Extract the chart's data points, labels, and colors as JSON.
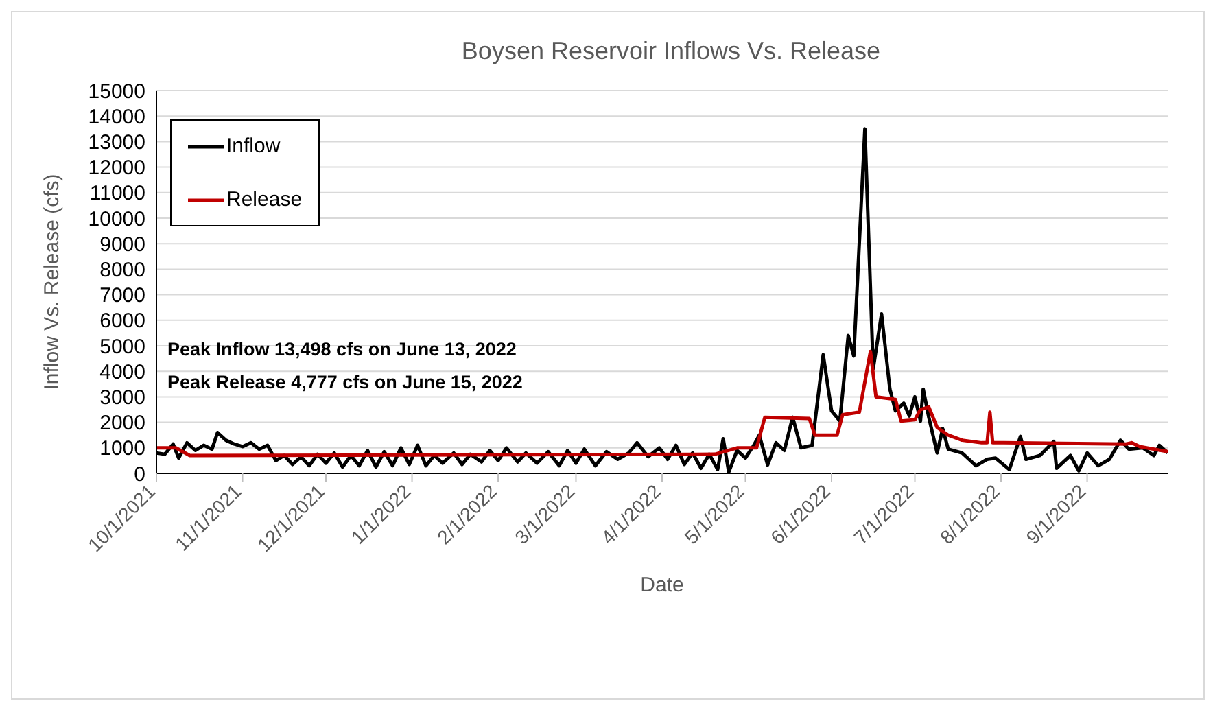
{
  "chart_data": {
    "type": "line",
    "title": "Boysen Reservoir Inflows Vs. Release",
    "xlabel": "Date",
    "ylabel": "Inflow Vs. Release (cfs)",
    "annotations": [
      "Peak Inflow 13,498  cfs on June 13, 2022",
      "Peak Release 4,777 cfs on June 15, 2022"
    ],
    "xlim": [
      "2021-10-01",
      "2022-09-30"
    ],
    "xticks": [
      {
        "value": "2021-10-01",
        "label": "10/1/2021"
      },
      {
        "value": "2021-11-01",
        "label": "11/1/2021"
      },
      {
        "value": "2021-12-01",
        "label": "12/1/2021"
      },
      {
        "value": "2022-01-01",
        "label": "1/1/2022"
      },
      {
        "value": "2022-02-01",
        "label": "2/1/2022"
      },
      {
        "value": "2022-03-01",
        "label": "3/1/2022"
      },
      {
        "value": "2022-04-01",
        "label": "4/1/2022"
      },
      {
        "value": "2022-05-01",
        "label": "5/1/2022"
      },
      {
        "value": "2022-06-01",
        "label": "6/1/2022"
      },
      {
        "value": "2022-07-01",
        "label": "7/1/2022"
      },
      {
        "value": "2022-08-01",
        "label": "8/1/2022"
      },
      {
        "value": "2022-09-01",
        "label": "9/1/2022"
      }
    ],
    "ylim": [
      0,
      15000
    ],
    "yticks": [
      0,
      1000,
      2000,
      3000,
      4000,
      5000,
      6000,
      7000,
      8000,
      9000,
      10000,
      11000,
      12000,
      13000,
      14000,
      15000
    ],
    "grid": "y",
    "legend": "top left",
    "marker": "none",
    "line_style": "solid",
    "series": [
      {
        "name": "Inflow",
        "color": "#000000",
        "x": [
          "2021-10-01",
          "2021-10-04",
          "2021-10-07",
          "2021-10-09",
          "2021-10-12",
          "2021-10-15",
          "2021-10-18",
          "2021-10-21",
          "2021-10-23",
          "2021-10-26",
          "2021-10-29",
          "2021-11-01",
          "2021-11-04",
          "2021-11-07",
          "2021-11-10",
          "2021-11-13",
          "2021-11-16",
          "2021-11-19",
          "2021-11-22",
          "2021-11-25",
          "2021-11-28",
          "2021-12-01",
          "2021-12-04",
          "2021-12-07",
          "2021-12-10",
          "2021-12-13",
          "2021-12-16",
          "2021-12-19",
          "2021-12-22",
          "2021-12-25",
          "2021-12-28",
          "2021-12-31",
          "2022-01-03",
          "2022-01-06",
          "2022-01-09",
          "2022-01-12",
          "2022-01-16",
          "2022-01-19",
          "2022-01-22",
          "2022-01-26",
          "2022-01-29",
          "2022-02-01",
          "2022-02-04",
          "2022-02-08",
          "2022-02-11",
          "2022-02-15",
          "2022-02-19",
          "2022-02-23",
          "2022-02-26",
          "2022-03-01",
          "2022-03-04",
          "2022-03-08",
          "2022-03-12",
          "2022-03-16",
          "2022-03-20",
          "2022-03-23",
          "2022-03-27",
          "2022-03-31",
          "2022-04-03",
          "2022-04-06",
          "2022-04-09",
          "2022-04-12",
          "2022-04-15",
          "2022-04-18",
          "2022-04-21",
          "2022-04-23",
          "2022-04-25",
          "2022-04-28",
          "2022-05-01",
          "2022-05-04",
          "2022-05-06",
          "2022-05-09",
          "2022-05-12",
          "2022-05-15",
          "2022-05-18",
          "2022-05-21",
          "2022-05-25",
          "2022-05-29",
          "2022-06-01",
          "2022-06-04",
          "2022-06-07",
          "2022-06-09",
          "2022-06-13",
          "2022-06-16",
          "2022-06-19",
          "2022-06-22",
          "2022-06-24",
          "2022-06-27",
          "2022-06-29",
          "2022-07-01",
          "2022-07-03",
          "2022-07-04",
          "2022-07-06",
          "2022-07-09",
          "2022-07-11",
          "2022-07-13",
          "2022-07-18",
          "2022-07-23",
          "2022-07-27",
          "2022-07-30",
          "2022-08-04",
          "2022-08-08",
          "2022-08-10",
          "2022-08-15",
          "2022-08-20",
          "2022-08-21",
          "2022-08-26",
          "2022-08-29",
          "2022-09-01",
          "2022-09-05",
          "2022-09-09",
          "2022-09-13",
          "2022-09-16",
          "2022-09-21",
          "2022-09-25",
          "2022-09-27",
          "2022-09-30"
        ],
        "values": [
          800,
          750,
          1150,
          600,
          1200,
          900,
          1100,
          950,
          1600,
          1300,
          1150,
          1050,
          1200,
          950,
          1100,
          500,
          700,
          350,
          650,
          300,
          750,
          400,
          800,
          250,
          700,
          300,
          900,
          250,
          850,
          300,
          1000,
          350,
          1100,
          300,
          700,
          400,
          800,
          350,
          750,
          450,
          900,
          500,
          1000,
          450,
          800,
          400,
          850,
          300,
          900,
          400,
          950,
          300,
          850,
          550,
          800,
          1200,
          650,
          1000,
          550,
          1100,
          350,
          800,
          200,
          750,
          150,
          1360,
          50,
          900,
          600,
          1100,
          1500,
          330,
          1200,
          900,
          2200,
          1000,
          1100,
          4650,
          2450,
          2050,
          5400,
          4600,
          13498,
          4100,
          6250,
          3300,
          2450,
          2750,
          2250,
          3000,
          2050,
          3300,
          2200,
          800,
          1750,
          950,
          800,
          300,
          550,
          600,
          150,
          1450,
          550,
          700,
          1250,
          200,
          700,
          100,
          800,
          300,
          550,
          1300,
          950,
          1000,
          700,
          1100,
          800
        ]
      },
      {
        "name": "Release",
        "color": "#c00000",
        "x": [
          "2021-10-01",
          "2021-10-08",
          "2021-10-13",
          "2022-04-20",
          "2022-04-28",
          "2022-05-05",
          "2022-05-08",
          "2022-05-24",
          "2022-05-26",
          "2022-06-03",
          "2022-06-05",
          "2022-06-11",
          "2022-06-15",
          "2022-06-17",
          "2022-06-24",
          "2022-06-26",
          "2022-07-01",
          "2022-07-03",
          "2022-07-06",
          "2022-07-09",
          "2022-07-13",
          "2022-07-18",
          "2022-07-25",
          "2022-07-27",
          "2022-07-28",
          "2022-07-29",
          "2022-08-02",
          "2022-09-15",
          "2022-09-17",
          "2022-09-20",
          "2022-09-30"
        ],
        "values": [
          1000,
          1000,
          700,
          750,
          1000,
          1000,
          2200,
          2150,
          1500,
          1500,
          2300,
          2400,
          4777,
          3000,
          2900,
          2050,
          2100,
          2500,
          2600,
          1800,
          1500,
          1300,
          1200,
          1200,
          2400,
          1200,
          1200,
          1150,
          1200,
          1050,
          850
        ]
      }
    ]
  }
}
